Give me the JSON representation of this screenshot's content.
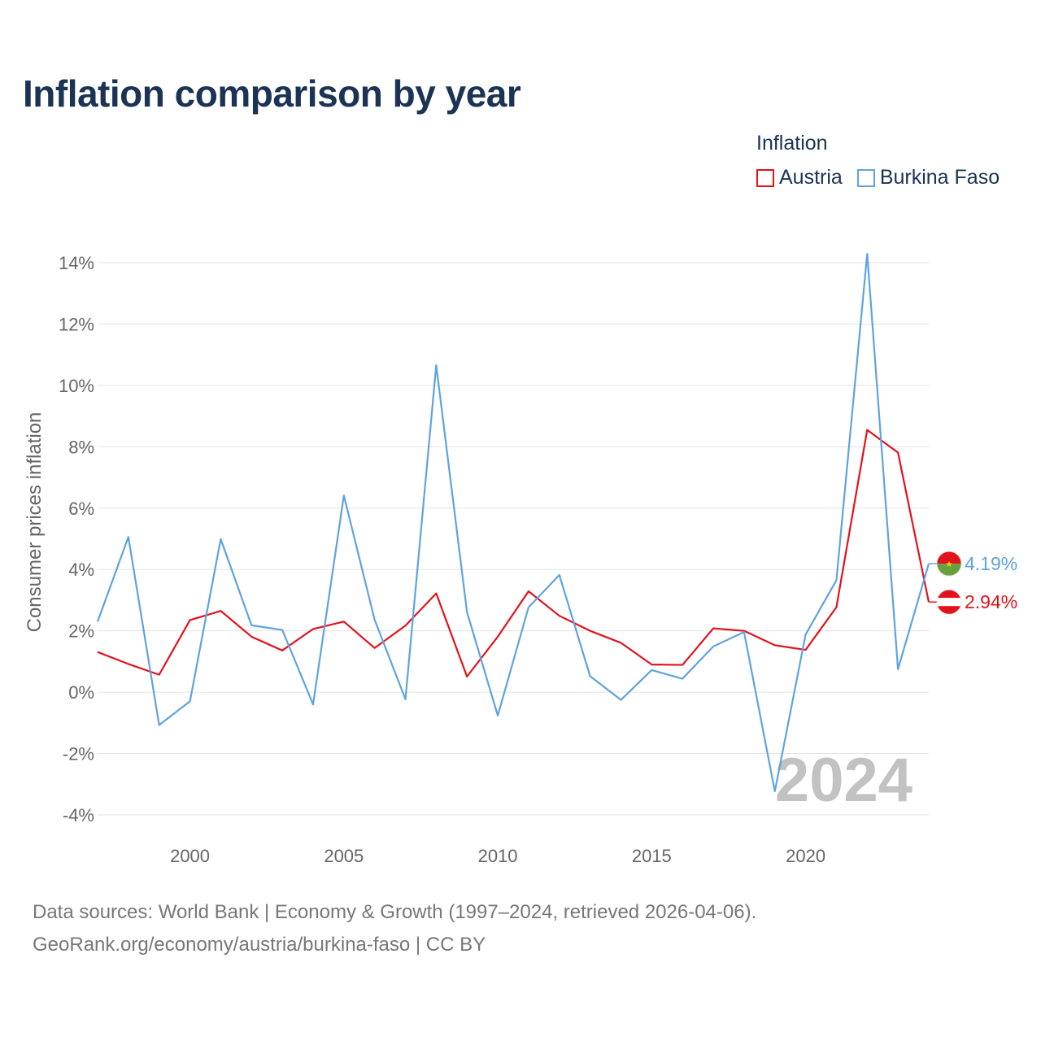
{
  "title": "Inflation comparison by year",
  "legend": {
    "title": "Inflation",
    "items": [
      {
        "name": "Austria",
        "color": "#e3121b"
      },
      {
        "name": "Burkina Faso",
        "color": "#5fa3e0"
      }
    ]
  },
  "chart_data": {
    "type": "line",
    "title": "Inflation comparison by year",
    "xlabel": "",
    "ylabel": "Consumer prices inflation",
    "xlim": [
      1997,
      2024
    ],
    "ylim": [
      -4,
      14
    ],
    "x_ticks": [
      2000,
      2005,
      2010,
      2015,
      2020
    ],
    "y_ticks": [
      -4,
      -2,
      0,
      2,
      4,
      6,
      8,
      10,
      12,
      14
    ],
    "y_tick_labels": [
      "-4%",
      "-2%",
      "0%",
      "2%",
      "4%",
      "6%",
      "8%",
      "10%",
      "12%",
      "14%"
    ],
    "grid": true,
    "legend_position": "top-right",
    "x": [
      1997,
      1998,
      1999,
      2000,
      2001,
      2002,
      2003,
      2004,
      2005,
      2006,
      2007,
      2008,
      2009,
      2010,
      2011,
      2012,
      2013,
      2014,
      2015,
      2016,
      2017,
      2018,
      2019,
      2020,
      2021,
      2022,
      2023,
      2024
    ],
    "series": [
      {
        "name": "Austria",
        "color": "#e3121b",
        "values": [
          1.31,
          0.92,
          0.57,
          2.35,
          2.65,
          1.81,
          1.36,
          2.06,
          2.3,
          1.44,
          2.17,
          3.22,
          0.51,
          1.81,
          3.29,
          2.49,
          2.0,
          1.61,
          0.9,
          0.89,
          2.08,
          2.0,
          1.53,
          1.38,
          2.77,
          8.55,
          7.81,
          2.94
        ],
        "end_label": "2.94%"
      },
      {
        "name": "Burkina Faso",
        "color": "#5fa3e0",
        "values": [
          2.3,
          5.06,
          -1.07,
          -0.3,
          4.99,
          2.18,
          2.03,
          -0.4,
          6.41,
          2.36,
          -0.23,
          10.66,
          2.61,
          -0.76,
          2.77,
          3.82,
          0.52,
          -0.25,
          0.72,
          0.44,
          1.49,
          1.96,
          -3.23,
          1.88,
          3.65,
          14.29,
          0.75,
          4.19
        ],
        "end_label": "4.19%"
      }
    ],
    "watermark_year": "2024"
  },
  "source": {
    "line1": "Data sources: World Bank | Economy & Growth (1997–2024, retrieved 2026-04-06).",
    "line2": "GeoRank.org/economy/austria/burkina-faso | CC BY"
  }
}
